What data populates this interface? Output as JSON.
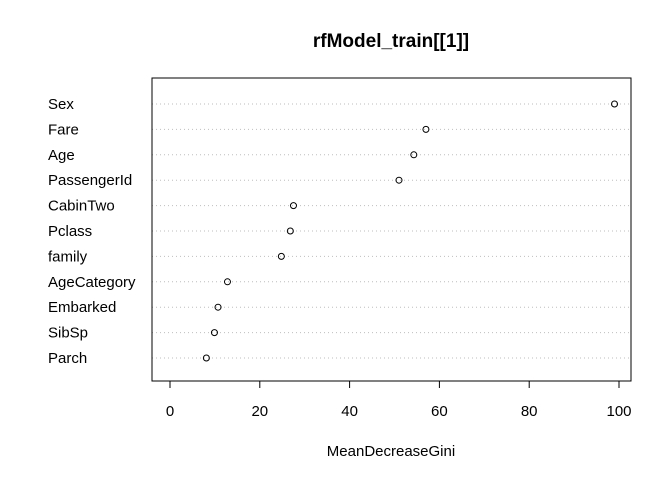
{
  "chart_data": {
    "type": "scatter",
    "subtype": "dotchart",
    "title": "rfModel_train[[1]]",
    "xlabel": "MeanDecreaseGini",
    "ylabel": "",
    "xlim": [
      -4,
      103
    ],
    "xticks": [
      0,
      20,
      40,
      60,
      80,
      100
    ],
    "grid": "dotted horizontal guide per category",
    "legend": "none",
    "categories": [
      "Sex",
      "Fare",
      "Age",
      "PassengerId",
      "CabinTwo",
      "Pclass",
      "family",
      "AgeCategory",
      "Embarked",
      "SibSp",
      "Parch"
    ],
    "values": [
      99.0,
      57.0,
      54.3,
      51.0,
      27.5,
      26.8,
      24.8,
      12.8,
      10.7,
      9.9,
      8.1
    ],
    "colors": {
      "points": "#000000",
      "guides": "#bebebe",
      "frame": "#000000"
    }
  }
}
